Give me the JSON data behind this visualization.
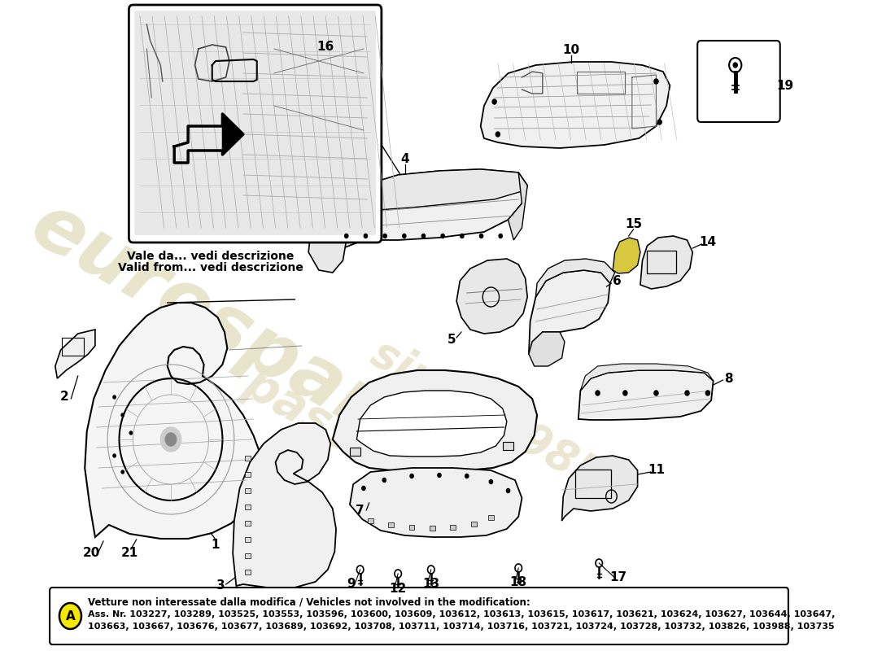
{
  "bg_color": "#ffffff",
  "watermark_text1": "eurospares",
  "watermark_text2": "passion",
  "watermark_text3": "since 1985",
  "watermark_color": "#d4c99a",
  "inset_caption_line1": "Vale da... vedi descrizione",
  "inset_caption_line2": "Valid from... vedi descrizione",
  "footer_bold_text": "Vetture non interessate dalla modifica / Vehicles not involved in the modification:",
  "footer_text1": "Ass. Nr. 103227, 103289, 103525, 103553, 103596, 103600, 103609, 103612, 103613, 103615, 103617, 103621, 103624, 103627, 103644, 103647,",
  "footer_text2": "103663, 103667, 103676, 103677, 103689, 103692, 103708, 103711, 103714, 103716, 103721, 103724, 103728, 103732, 103826, 103988, 103735",
  "circle_label": "A",
  "circle_fill": "#f5e800",
  "label_fs": 10,
  "footer_fs": 8.5
}
